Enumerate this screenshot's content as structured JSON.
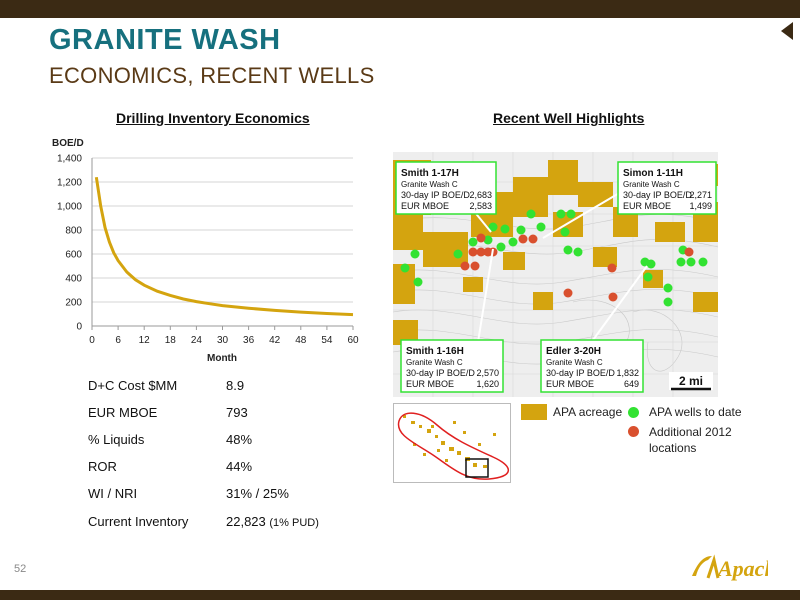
{
  "slide": {
    "title": "GRANITE WASH",
    "subtitle": "ECONOMICS, RECENT WELLS",
    "page_number": "52",
    "logo_text": "Apache"
  },
  "left_section": {
    "heading": "Drilling Inventory Economics"
  },
  "right_section": {
    "heading": "Recent Well Highlights"
  },
  "colors": {
    "title": "#16707e",
    "subtitle": "#5a3a16",
    "band": "#3b2a14",
    "curve": "#d4a40f",
    "acreage": "#d4a40f",
    "wells_to_date": "#32e232",
    "additional_locations": "#d9502e",
    "callout_border": "#32e232",
    "play_outline": "#e02020"
  },
  "chart_data": {
    "type": "line",
    "title": "",
    "xlabel": "Month",
    "ylabel": "BOE/D",
    "xlim": [
      0,
      60
    ],
    "ylim": [
      0,
      1400
    ],
    "x_ticks": [
      0,
      6,
      12,
      18,
      24,
      30,
      36,
      42,
      48,
      54,
      60
    ],
    "y_ticks": [
      0,
      200,
      400,
      600,
      800,
      1000,
      1200,
      1400
    ],
    "y_tick_labels": [
      "0",
      "200",
      "400",
      "600",
      "800",
      "1,000",
      "1,200",
      "1,400"
    ],
    "grid": "horizontal",
    "legend": "none",
    "series": [
      {
        "x": [
          1,
          2,
          3,
          4,
          5,
          6,
          8,
          10,
          12,
          15,
          18,
          21,
          24,
          27,
          30,
          36,
          42,
          48,
          54,
          60
        ],
        "y": [
          1240,
          1000,
          820,
          700,
          610,
          545,
          450,
          385,
          340,
          290,
          255,
          225,
          203,
          186,
          170,
          148,
          130,
          116,
          104,
          95
        ]
      }
    ]
  },
  "metrics": [
    {
      "label": "D+C Cost $MM",
      "value": "8.9",
      "note": ""
    },
    {
      "label": "EUR MBOE",
      "value": "793",
      "note": ""
    },
    {
      "label": "% Liquids",
      "value": "48%",
      "note": ""
    },
    {
      "label": "ROR",
      "value": "44%",
      "note": ""
    },
    {
      "label": "WI / NRI",
      "value": "31% / 25%",
      "note": ""
    },
    {
      "label": "Current Inventory",
      "value": "22,823",
      "note": "(1% PUD)"
    }
  ],
  "map": {
    "scale_label": "2 mi",
    "callouts": [
      {
        "name": "Smith 1-17H",
        "formation": "Granite Wash C",
        "ip_label": "30-day IP BOE/D",
        "ip_value": "2,683",
        "eur_label": "EUR MBOE",
        "eur_value": "2,583"
      },
      {
        "name": "Simon 1-11H",
        "formation": "Granite Wash C",
        "ip_label": "30-day IP BOE/D",
        "ip_value": "2,271",
        "eur_label": "EUR MBOE",
        "eur_value": "1,499"
      },
      {
        "name": "Smith 1-16H",
        "formation": "Granite Wash C",
        "ip_label": "30-day IP BOE/D",
        "ip_value": "2,570",
        "eur_label": "EUR MBOE",
        "eur_value": "1,620"
      },
      {
        "name": "Edler 3-20H",
        "formation": "Granite Wash C",
        "ip_label": "30-day IP BOE/D",
        "ip_value": "1,832",
        "eur_label": "EUR MBOE",
        "eur_value": "649"
      }
    ]
  },
  "legend": {
    "acreage": "APA acreage",
    "wells_to_date": "APA wells to date",
    "additional_locations": "Additional 2012 locations"
  }
}
